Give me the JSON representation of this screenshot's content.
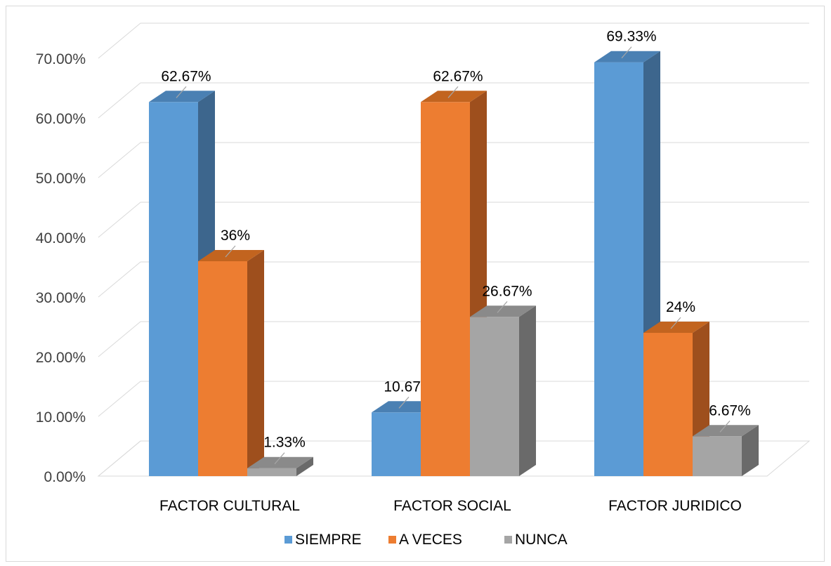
{
  "chart_data": {
    "type": "bar",
    "style": "3d-clustered-column",
    "categories": [
      "FACTOR CULTURAL",
      "FACTOR SOCIAL",
      "FACTOR JURIDICO"
    ],
    "series": [
      {
        "name": "SIEMPRE",
        "values": [
          62.67,
          10.67,
          69.33
        ],
        "labels": [
          "62.67%",
          "10.67%",
          "69.33%"
        ],
        "color": "#5b9bd5",
        "side_color": "#3d668d",
        "top_color": "#4a80b3"
      },
      {
        "name": "A VECES",
        "values": [
          36,
          62.67,
          24
        ],
        "labels": [
          "36%",
          "62.67%",
          "24%"
        ],
        "color": "#ed7d31",
        "side_color": "#9e4f1d",
        "top_color": "#c2641f"
      },
      {
        "name": "NUNCA",
        "values": [
          1.33,
          26.67,
          6.67
        ],
        "labels": [
          "1.33%",
          "26.67%",
          "6.67%"
        ],
        "color": "#a5a5a5",
        "side_color": "#6a6a6a",
        "top_color": "#8a8a8a"
      }
    ],
    "y_ticks": [
      "0.00%",
      "10.00%",
      "20.00%",
      "30.00%",
      "40.00%",
      "50.00%",
      "60.00%",
      "70.00%"
    ],
    "ylim": [
      0,
      70
    ],
    "grid": true,
    "legend_position": "bottom",
    "title": "",
    "xlabel": "",
    "ylabel": ""
  }
}
